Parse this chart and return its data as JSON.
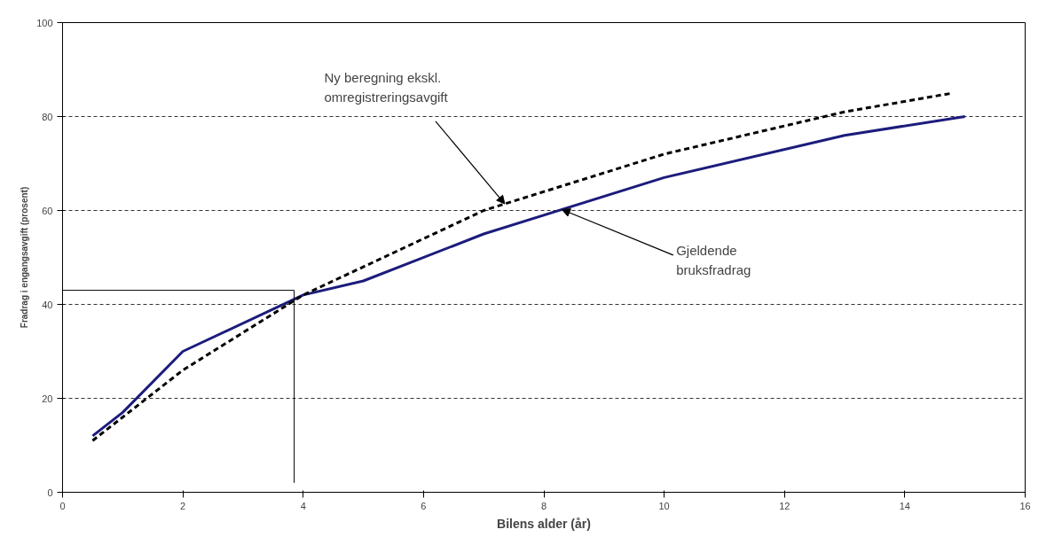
{
  "chart_data": {
    "type": "line",
    "xlabel": "Bilens alder (år)",
    "ylabel": "Fradrag i engangsavgift (prosent)",
    "xlim": [
      0,
      16
    ],
    "ylim": [
      0,
      100
    ],
    "xticks": [
      0,
      2,
      4,
      6,
      8,
      10,
      12,
      14,
      16
    ],
    "yticks": [
      0,
      20,
      40,
      60,
      80,
      100
    ],
    "grid": "y",
    "marker": "none",
    "series": [
      {
        "color": "#1c1c7c",
        "line_style": "solid",
        "x": [
          0.5,
          1,
          2,
          4,
          5,
          7,
          10,
          13,
          15
        ],
        "values": [
          12,
          17,
          30,
          42,
          45,
          55,
          67,
          76,
          80
        ]
      },
      {
        "color": "#000000",
        "line_style": "dashed",
        "x": [
          0.5,
          1,
          2,
          3,
          4,
          5,
          7,
          10,
          13,
          14.8
        ],
        "values": [
          11,
          16,
          26,
          34,
          42,
          48,
          60,
          72,
          81,
          85
        ]
      },
      {
        "color": "#000000",
        "line_style": "solid",
        "x": [
          0,
          3.85,
          3.85
        ],
        "values": [
          43,
          43,
          2
        ]
      }
    ],
    "annotations": [
      {
        "text": "Ny beregning ekskl.\nomregistreringsavgift",
        "x": 7.35,
        "y": 61.4
      },
      {
        "text": "Gjeldende\nbruksfradrag",
        "x": 8.3,
        "y": 60.2
      }
    ]
  }
}
